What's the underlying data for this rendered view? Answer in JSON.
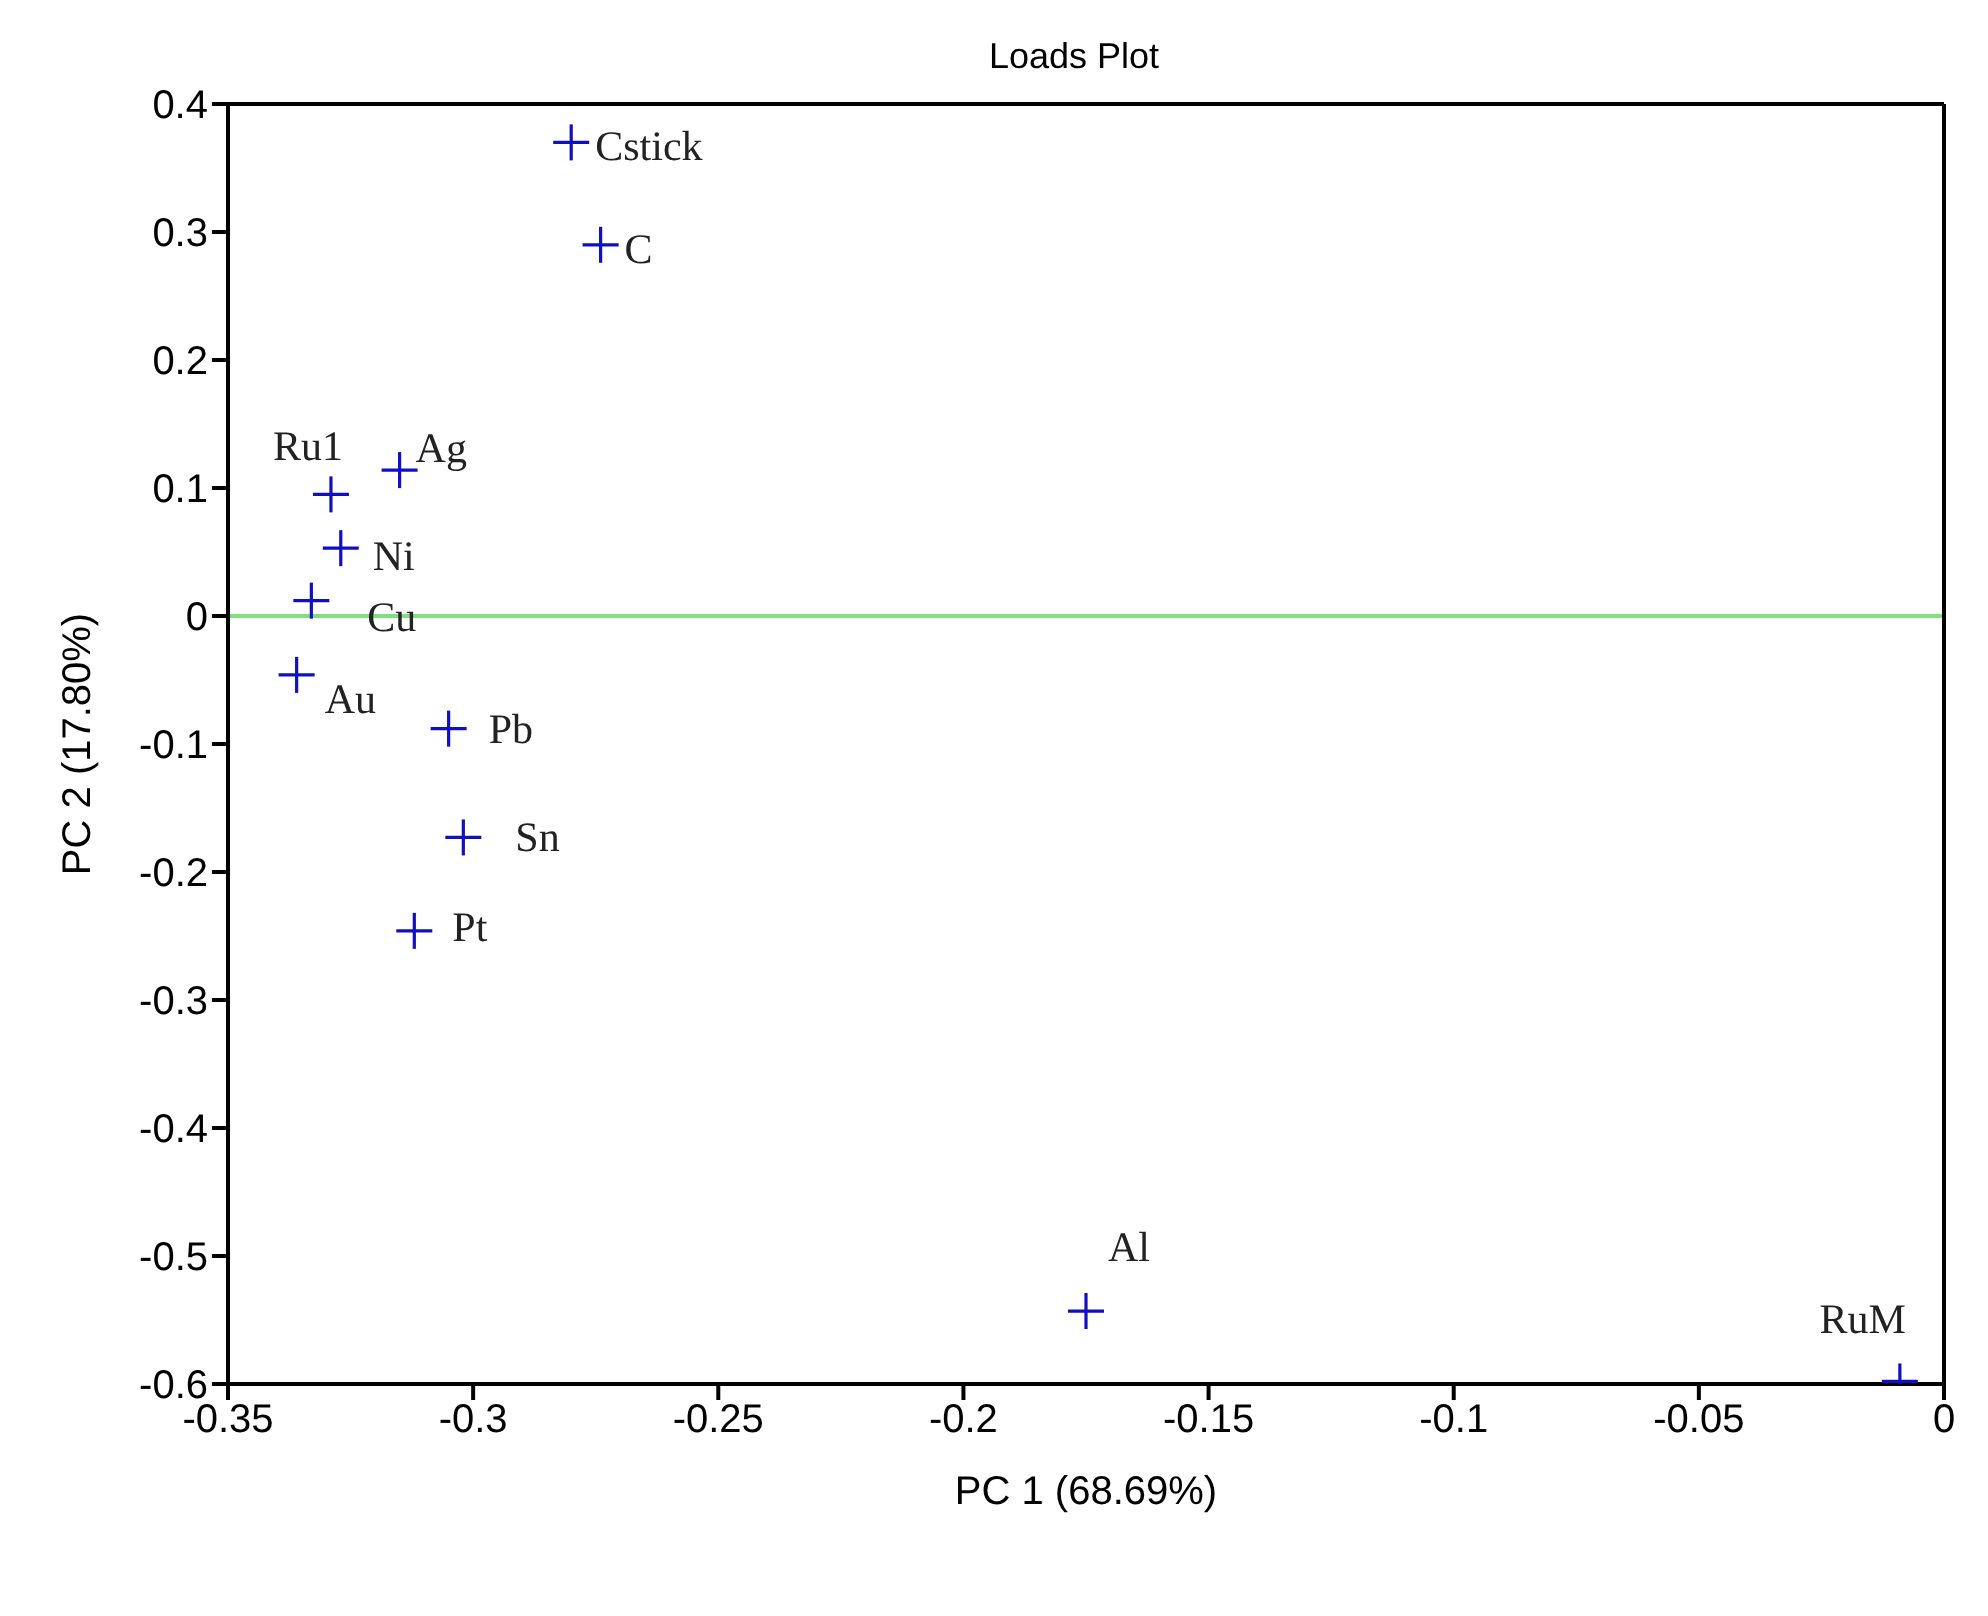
{
  "chart_data": {
    "type": "scatter",
    "title": "Loads Plot",
    "xlabel": "PC 1 (68.69%)",
    "ylabel": "PC 2 (17.80%)",
    "xlim": [
      -0.35,
      0
    ],
    "xticks": [
      -0.35,
      -0.3,
      -0.25,
      -0.2,
      -0.15,
      -0.1,
      -0.05,
      0
    ],
    "ylim": [
      -0.6,
      0.4
    ],
    "yticks": [
      -0.6,
      -0.5,
      -0.4,
      -0.3,
      -0.2,
      -0.1,
      0,
      0.1,
      0.2,
      0.3,
      0.4
    ],
    "marker": "cross",
    "grid": false,
    "legend": false,
    "series": [
      {
        "color": "#1010c0",
        "x": [
          -0.28,
          -0.274,
          -0.315,
          -0.329,
          -0.327,
          -0.333,
          -0.336,
          -0.305,
          -0.302,
          -0.312,
          -0.175,
          -0.009
        ],
        "values": [
          0.37,
          0.29,
          0.114,
          0.095,
          0.053,
          0.012,
          -0.046,
          -0.088,
          -0.173,
          -0.246,
          -0.543,
          -0.598
        ]
      }
    ],
    "annotations": [
      {
        "text": "Cstick",
        "x": -0.28,
        "y": 0.37
      },
      {
        "text": "C",
        "x": -0.274,
        "y": 0.29
      },
      {
        "text": "Ag",
        "x": -0.315,
        "y": 0.114
      },
      {
        "text": "Ru1",
        "x": -0.329,
        "y": 0.095
      },
      {
        "text": "Ni",
        "x": -0.327,
        "y": 0.053
      },
      {
        "text": "Cu",
        "x": -0.333,
        "y": 0.012
      },
      {
        "text": "Au",
        "x": -0.336,
        "y": -0.046
      },
      {
        "text": "Pb",
        "x": -0.305,
        "y": -0.088
      },
      {
        "text": "Sn",
        "x": -0.302,
        "y": -0.173
      },
      {
        "text": "Pt",
        "x": -0.312,
        "y": -0.246
      },
      {
        "text": "Al",
        "x": -0.175,
        "y": -0.543
      },
      {
        "text": "RuM",
        "x": -0.009,
        "y": -0.598
      }
    ],
    "ref_lines": [
      {
        "axis": "y",
        "value": 0,
        "color": "#7ee07e"
      }
    ]
  }
}
